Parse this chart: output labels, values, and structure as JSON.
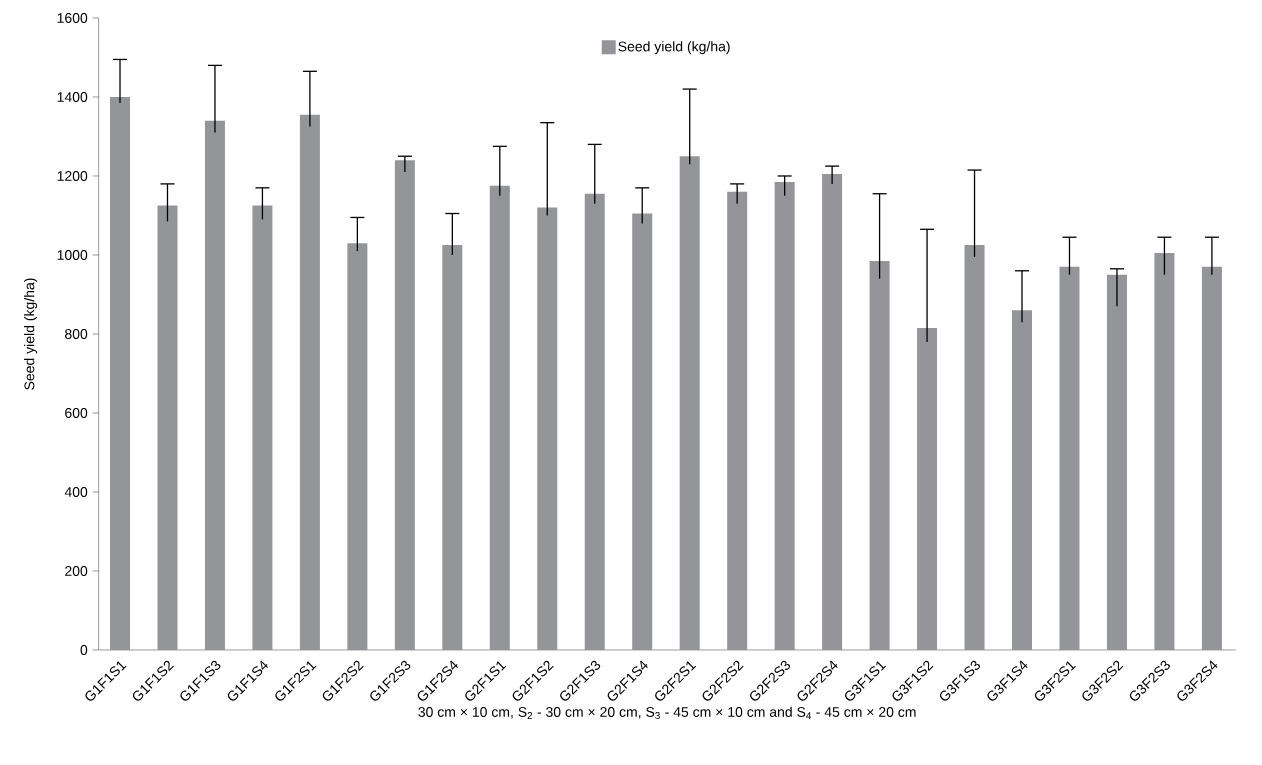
{
  "chart_data": {
    "type": "bar",
    "ylabel": "Seed yield (kg/ha)",
    "xlabel": "30 cm × 10 cm, S$_{2}$ - 30 cm × 20 cm, S$_{3}$ - 45 cm × 10 cm and S$_{4}$ - 45 cm × 20 cm",
    "categories": [
      "G1F1S1",
      "G1F1S2",
      "G1F1S3",
      "G1F1S4",
      "G1F2S1",
      "G1F2S2",
      "G1F2S3",
      "G1F2S4",
      "G2F1S1",
      "G2F1S2",
      "G2F1S3",
      "G2F1S4",
      "G2F2S1",
      "G2F2S2",
      "G2F2S3",
      "G2F2S4",
      "G3F1S1",
      "G3F1S2",
      "G3F1S3",
      "G3F1S4",
      "G3F2S1",
      "G3F2S2",
      "G3F2S3",
      "G3F2S4"
    ],
    "series": [
      {
        "name": "Seed yield (kg/ha)",
        "color": "#939598",
        "values": [
          1400,
          1125,
          1340,
          1125,
          1355,
          1030,
          1240,
          1025,
          1175,
          1120,
          1155,
          1105,
          1250,
          1160,
          1185,
          1205,
          985,
          815,
          1025,
          860,
          970,
          950,
          1005,
          970
        ],
        "errors": [
          [
            1385,
            1495
          ],
          [
            1085,
            1180
          ],
          [
            1310,
            1480
          ],
          [
            1090,
            1170
          ],
          [
            1325,
            1465
          ],
          [
            1010,
            1095
          ],
          [
            1210,
            1250
          ],
          [
            1000,
            1105
          ],
          [
            1150,
            1275
          ],
          [
            1100,
            1335
          ],
          [
            1130,
            1280
          ],
          [
            1080,
            1170
          ],
          [
            1230,
            1420
          ],
          [
            1130,
            1180
          ],
          [
            1150,
            1200
          ],
          [
            1180,
            1225
          ],
          [
            940,
            1155
          ],
          [
            780,
            1065
          ],
          [
            995,
            1215
          ],
          [
            830,
            960
          ],
          [
            950,
            1045
          ],
          [
            870,
            965
          ],
          [
            950,
            1045
          ],
          [
            950,
            1045
          ]
        ]
      }
    ],
    "ylim": [
      0,
      1600
    ],
    "yticks": [
      0,
      200,
      400,
      600,
      800,
      1000,
      1200,
      1400,
      1600
    ],
    "legend": "top",
    "grid": false
  }
}
